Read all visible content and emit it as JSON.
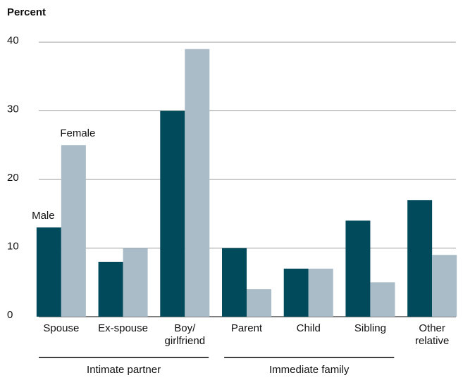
{
  "chart_data": {
    "type": "bar",
    "y_label": "Percent",
    "categories": [
      "Spouse",
      "Ex-spouse",
      "Boy/ girlfriend",
      "Parent",
      "Child",
      "Sibling",
      "Other relative"
    ],
    "series": [
      {
        "name": "Male",
        "color": "#004a5c",
        "values": [
          13,
          8,
          30,
          10,
          7,
          14,
          17
        ]
      },
      {
        "name": "Female",
        "color": "#a9bcc8",
        "values": [
          25,
          10,
          39,
          4,
          7,
          5,
          9
        ]
      }
    ],
    "groups": [
      {
        "label": "Intimate partner",
        "span": 3
      },
      {
        "label": "Immediate family",
        "span": 3
      }
    ],
    "ylim": [
      0,
      40
    ],
    "yticks": [
      0,
      10,
      20,
      30,
      40
    ],
    "grid": true
  }
}
